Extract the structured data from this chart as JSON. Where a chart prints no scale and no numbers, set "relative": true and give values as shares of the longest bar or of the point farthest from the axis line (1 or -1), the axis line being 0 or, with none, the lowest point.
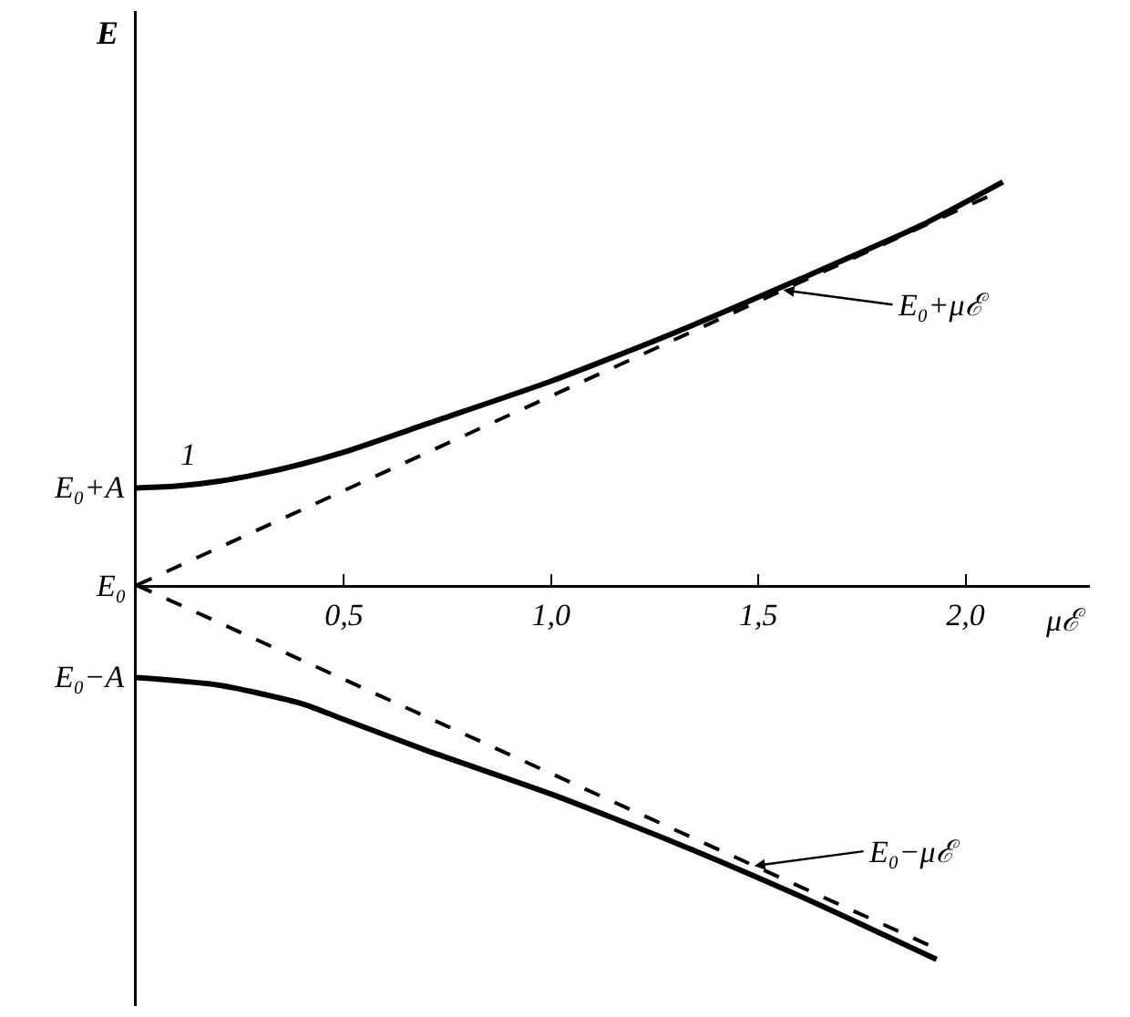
{
  "chart_data": {
    "type": "line",
    "relative": true,
    "xlabel": "μℰ",
    "ylabel": "E",
    "xlim": [
      0,
      2.3
    ],
    "xticks": [
      {
        "value": 0.5,
        "label": "0,5"
      },
      {
        "value": 1.0,
        "label": "1,0"
      },
      {
        "value": 1.5,
        "label": "1,5"
      },
      {
        "value": 2.0,
        "label": "2,0"
      }
    ],
    "grid": false,
    "marker": "none",
    "series": [
      {
        "color": "#000000",
        "line_style": "solid",
        "x": [
          0,
          0.1,
          0.2,
          0.3,
          0.4,
          0.5,
          0.7,
          1.0,
          1.3,
          1.6,
          1.9,
          2.09
        ],
        "values": [
          0.241,
          0.246,
          0.258,
          0.277,
          0.301,
          0.33,
          0.4,
          0.506,
          0.627,
          0.759,
          0.896,
          1
        ]
      },
      {
        "color": "#000000",
        "line_style": "dashed",
        "x": [
          0,
          2.08
        ],
        "values": [
          0,
          0.976
        ]
      },
      {
        "color": "#000000",
        "line_style": "solid",
        "x": [
          0,
          0.2,
          0.4,
          0.5,
          0.7,
          1.0,
          1.3,
          1.6,
          1.93
        ],
        "values": [
          -0.229,
          -0.248,
          -0.294,
          -0.333,
          -0.41,
          -0.518,
          -0.639,
          -0.771,
          -0.928
        ]
      },
      {
        "color": "#000000",
        "line_style": "dashed",
        "x": [
          0,
          1.91
        ],
        "values": [
          0,
          -0.892
        ]
      }
    ],
    "annotations": [
      {
        "text": "E₀+A",
        "x": 0,
        "y": 0.241
      },
      {
        "text": "E₀",
        "x": 0,
        "y": 0
      },
      {
        "text": "E₀−A",
        "x": 0,
        "y": -0.229
      },
      {
        "text": "1",
        "x": 0.1,
        "y": 0.246
      },
      {
        "text": "E₀+μℰ",
        "x": 1.56,
        "y": 0.732
      },
      {
        "text": "E₀−μℰ",
        "x": 1.49,
        "y": -0.696
      }
    ]
  }
}
